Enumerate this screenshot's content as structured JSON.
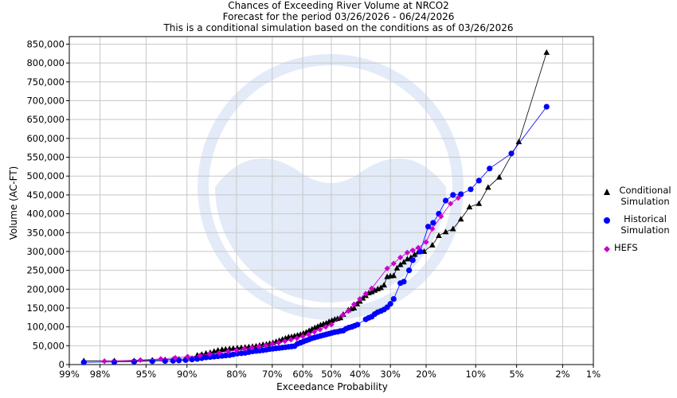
{
  "chart_data": {
    "type": "scatter",
    "title_lines": [
      "Chances of Exceeding River Volume at NRCO2",
      "Forecast for the period 03/26/2026 - 06/24/2026",
      "This is a conditional simulation based on the conditions as of 03/26/2026"
    ],
    "xlabel": "Exceedance Probability",
    "ylabel": "Volume (AC-FT)",
    "x_scale": "normal-probability",
    "x_ticks": [
      {
        "p": 99,
        "label": "99%"
      },
      {
        "p": 98,
        "label": "98%"
      },
      {
        "p": 95,
        "label": "95%"
      },
      {
        "p": 90,
        "label": "90%"
      },
      {
        "p": 80,
        "label": "80%"
      },
      {
        "p": 70,
        "label": "70%"
      },
      {
        "p": 60,
        "label": "60%"
      },
      {
        "p": 50,
        "label": "50%"
      },
      {
        "p": 40,
        "label": "40%"
      },
      {
        "p": 30,
        "label": "30%"
      },
      {
        "p": 20,
        "label": "20%"
      },
      {
        "p": 10,
        "label": "10%"
      },
      {
        "p": 5,
        "label": "5%"
      },
      {
        "p": 2,
        "label": "2%"
      },
      {
        "p": 1,
        "label": "1%"
      }
    ],
    "ylim": [
      0,
      870000
    ],
    "y_ticks": [
      {
        "v": 0,
        "label": "0"
      },
      {
        "v": 50000,
        "label": "50,000"
      },
      {
        "v": 100000,
        "label": "100,000"
      },
      {
        "v": 150000,
        "label": "150,000"
      },
      {
        "v": 200000,
        "label": "200,000"
      },
      {
        "v": 250000,
        "label": "250,000"
      },
      {
        "v": 300000,
        "label": "300,000"
      },
      {
        "v": 350000,
        "label": "350,000"
      },
      {
        "v": 400000,
        "label": "400,000"
      },
      {
        "v": 450000,
        "label": "450,000"
      },
      {
        "v": 500000,
        "label": "500,000"
      },
      {
        "v": 550000,
        "label": "550,000"
      },
      {
        "v": 600000,
        "label": "600,000"
      },
      {
        "v": 650000,
        "label": "650,000"
      },
      {
        "v": 700000,
        "label": "700,000"
      },
      {
        "v": 750000,
        "label": "750,000"
      },
      {
        "v": 800000,
        "label": "800,000"
      },
      {
        "v": 850000,
        "label": "850,000"
      }
    ],
    "grid": true,
    "legend_position": "right",
    "series": [
      {
        "name": "Conditional Simulation",
        "legend_lines": [
          "Conditional",
          "Simulation"
        ],
        "marker": "triangle",
        "color": "#000000",
        "points": [
          [
            98.6,
            10000
          ],
          [
            97.3,
            10000
          ],
          [
            96.0,
            10000
          ],
          [
            94.4,
            12000
          ],
          [
            93.0,
            13000
          ],
          [
            92.0,
            14000
          ],
          [
            91.2,
            14500
          ],
          [
            90.2,
            15000
          ],
          [
            89.2,
            16000
          ],
          [
            88.3,
            25000
          ],
          [
            87.5,
            27000
          ],
          [
            86.7,
            30000
          ],
          [
            85.9,
            32000
          ],
          [
            85.1,
            35000
          ],
          [
            84.3,
            38000
          ],
          [
            83.4,
            40000
          ],
          [
            82.6,
            41000
          ],
          [
            81.7,
            42000
          ],
          [
            80.8,
            43000
          ],
          [
            79.8,
            44000
          ],
          [
            78.8,
            45000
          ],
          [
            77.8,
            46000
          ],
          [
            76.8,
            47000
          ],
          [
            75.8,
            48000
          ],
          [
            74.8,
            49000
          ],
          [
            73.8,
            51000
          ],
          [
            72.8,
            53000
          ],
          [
            71.8,
            54000
          ],
          [
            70.8,
            56000
          ],
          [
            69.8,
            58000
          ],
          [
            68.8,
            61000
          ],
          [
            67.8,
            64000
          ],
          [
            66.8,
            67000
          ],
          [
            65.8,
            70000
          ],
          [
            64.8,
            73000
          ],
          [
            63.8,
            74000
          ],
          [
            62.8,
            76000
          ],
          [
            61.8,
            78000
          ],
          [
            60.8,
            80000
          ],
          [
            59.8,
            83000
          ],
          [
            58.8,
            86000
          ],
          [
            57.8,
            90000
          ],
          [
            56.8,
            94000
          ],
          [
            55.8,
            98000
          ],
          [
            54.8,
            101000
          ],
          [
            53.8,
            105000
          ],
          [
            52.8,
            108000
          ],
          [
            51.8,
            110000
          ],
          [
            50.8,
            114000
          ],
          [
            49.8,
            117000
          ],
          [
            48.8,
            120000
          ],
          [
            47.8,
            122000
          ],
          [
            46.8,
            124000
          ],
          [
            45.8,
            133000
          ],
          [
            44.0,
            145000
          ],
          [
            43.0,
            148000
          ],
          [
            42.0,
            150000
          ],
          [
            41.0,
            161000
          ],
          [
            40.0,
            168000
          ],
          [
            39.0,
            176000
          ],
          [
            38.0,
            183000
          ],
          [
            37.0,
            190000
          ],
          [
            36.0,
            193000
          ],
          [
            35.0,
            197000
          ],
          [
            34.0,
            201000
          ],
          [
            33.0,
            204000
          ],
          [
            32.0,
            211000
          ],
          [
            31.0,
            233000
          ],
          [
            30.0,
            235000
          ],
          [
            29.0,
            236000
          ],
          [
            28.0,
            256000
          ],
          [
            27.0,
            265000
          ],
          [
            26.0,
            272000
          ],
          [
            25.0,
            280000
          ],
          [
            24.0,
            284000
          ],
          [
            23.0,
            292000
          ],
          [
            22.0,
            299000
          ],
          [
            20.5,
            300000
          ],
          [
            18.5,
            317000
          ],
          [
            17.0,
            342000
          ],
          [
            15.5,
            352000
          ],
          [
            14.0,
            360000
          ],
          [
            12.5,
            386000
          ],
          [
            11.0,
            418000
          ],
          [
            9.5,
            427000
          ],
          [
            8.2,
            470000
          ],
          [
            6.8,
            497000
          ],
          [
            4.8,
            591000
          ],
          [
            2.8,
            828000
          ]
        ]
      },
      {
        "name": "Historical Simulation",
        "legend_lines": [
          "Historical",
          "Simulation"
        ],
        "marker": "circle",
        "color": "#0000ff",
        "points": [
          [
            98.6,
            6000
          ],
          [
            97.3,
            7000
          ],
          [
            96.0,
            8000
          ],
          [
            94.4,
            9000
          ],
          [
            93.0,
            9500
          ],
          [
            92.0,
            10000
          ],
          [
            91.2,
            11000
          ],
          [
            90.2,
            12000
          ],
          [
            89.2,
            13500
          ],
          [
            88.3,
            15000
          ],
          [
            87.5,
            17000
          ],
          [
            86.7,
            19000
          ],
          [
            85.9,
            20000
          ],
          [
            85.1,
            21000
          ],
          [
            84.3,
            22000
          ],
          [
            83.4,
            23000
          ],
          [
            82.6,
            24000
          ],
          [
            81.7,
            25000
          ],
          [
            80.8,
            27000
          ],
          [
            79.8,
            29000
          ],
          [
            78.8,
            30000
          ],
          [
            77.8,
            31000
          ],
          [
            76.8,
            33000
          ],
          [
            75.8,
            35000
          ],
          [
            74.8,
            36000
          ],
          [
            73.8,
            37000
          ],
          [
            72.8,
            38000
          ],
          [
            71.8,
            39500
          ],
          [
            70.8,
            41000
          ],
          [
            69.8,
            42000
          ],
          [
            68.8,
            43000
          ],
          [
            67.8,
            44000
          ],
          [
            66.8,
            45000
          ],
          [
            65.8,
            46000
          ],
          [
            64.8,
            47000
          ],
          [
            63.8,
            48000
          ],
          [
            62.8,
            49000
          ],
          [
            61.8,
            55000
          ],
          [
            60.8,
            58000
          ],
          [
            59.8,
            61000
          ],
          [
            58.8,
            64000
          ],
          [
            57.8,
            67000
          ],
          [
            56.8,
            70000
          ],
          [
            55.8,
            72000
          ],
          [
            54.8,
            74000
          ],
          [
            53.8,
            76000
          ],
          [
            52.8,
            78000
          ],
          [
            51.8,
            80000
          ],
          [
            50.8,
            82000
          ],
          [
            49.8,
            84000
          ],
          [
            48.8,
            86000
          ],
          [
            47.8,
            87000
          ],
          [
            46.8,
            89000
          ],
          [
            45.8,
            90000
          ],
          [
            44.8,
            95000
          ],
          [
            43.8,
            98000
          ],
          [
            42.8,
            100000
          ],
          [
            41.8,
            103000
          ],
          [
            40.8,
            106000
          ],
          [
            38.0,
            120000
          ],
          [
            37.0,
            124000
          ],
          [
            36.0,
            127000
          ],
          [
            35.0,
            134000
          ],
          [
            34.0,
            139000
          ],
          [
            33.0,
            142000
          ],
          [
            32.0,
            146000
          ],
          [
            31.0,
            152000
          ],
          [
            30.0,
            161000
          ],
          [
            29.0,
            174000
          ],
          [
            27.0,
            216000
          ],
          [
            26.0,
            220000
          ],
          [
            24.5,
            250000
          ],
          [
            23.5,
            277000
          ],
          [
            21.5,
            300000
          ],
          [
            19.5,
            366000
          ],
          [
            18.3,
            376000
          ],
          [
            17.0,
            400000
          ],
          [
            15.5,
            435000
          ],
          [
            14.0,
            450000
          ],
          [
            12.5,
            452000
          ],
          [
            10.8,
            465000
          ],
          [
            9.5,
            488000
          ],
          [
            8.0,
            520000
          ],
          [
            5.5,
            560000
          ],
          [
            2.8,
            684000
          ]
        ]
      },
      {
        "name": "HEFS",
        "legend_lines": [
          "HEFS"
        ],
        "marker": "diamond",
        "color": "#cc00cc",
        "points": [
          [
            97.8,
            9000
          ],
          [
            95.5,
            12000
          ],
          [
            93.5,
            15000
          ],
          [
            91.7,
            18000
          ],
          [
            89.9,
            21000
          ],
          [
            87.8,
            24000
          ],
          [
            86.0,
            28000
          ],
          [
            84.0,
            31000
          ],
          [
            82.0,
            35000
          ],
          [
            80.0,
            38000
          ],
          [
            78.0,
            42000
          ],
          [
            76.0,
            45000
          ],
          [
            74.0,
            48000
          ],
          [
            72.0,
            51000
          ],
          [
            70.0,
            55000
          ],
          [
            68.0,
            58000
          ],
          [
            66.0,
            62000
          ],
          [
            64.0,
            66000
          ],
          [
            62.0,
            70000
          ],
          [
            60.0,
            75000
          ],
          [
            58.0,
            80000
          ],
          [
            56.0,
            87000
          ],
          [
            54.0,
            93000
          ],
          [
            52.0,
            100000
          ],
          [
            50.0,
            106000
          ],
          [
            46.0,
            131000
          ],
          [
            44.0,
            142000
          ],
          [
            42.0,
            160000
          ],
          [
            40.0,
            174000
          ],
          [
            38.0,
            188000
          ],
          [
            36.0,
            202000
          ],
          [
            31.0,
            255000
          ],
          [
            29.0,
            268000
          ],
          [
            27.0,
            284000
          ],
          [
            25.0,
            297000
          ],
          [
            23.5,
            303000
          ],
          [
            22.0,
            310000
          ],
          [
            20.0,
            325000
          ],
          [
            18.5,
            360000
          ],
          [
            16.5,
            393000
          ],
          [
            14.5,
            427000
          ],
          [
            13.0,
            442000
          ]
        ]
      }
    ]
  }
}
